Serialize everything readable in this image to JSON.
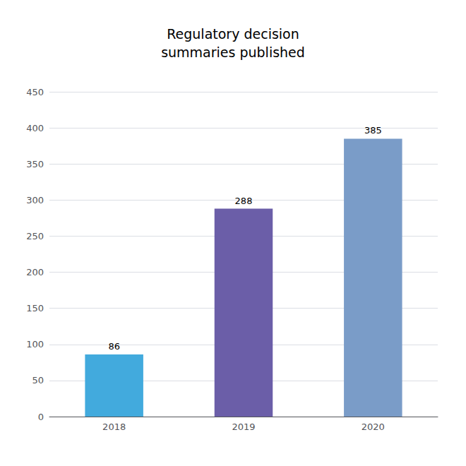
{
  "chart_data": {
    "type": "bar",
    "title": "Regulatory decision\nsummaries published",
    "categories": [
      "2018",
      "2019",
      "2020"
    ],
    "values": [
      86,
      288,
      385
    ],
    "colors": [
      "#42AADD",
      "#6B5EA8",
      "#7A9CC8"
    ],
    "ylim": [
      0,
      450
    ],
    "yticks": [
      0,
      50,
      100,
      150,
      200,
      250,
      300,
      350,
      400,
      450
    ],
    "grid": true,
    "data_labels": true
  }
}
